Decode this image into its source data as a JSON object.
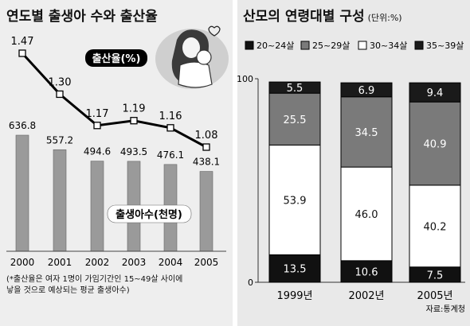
{
  "left": {
    "title": "연도별 출생아 수와 출산율",
    "footnote": "(*출산율은 여자 1명이 가임기간인 15~49살 사이에\n낳을 것으로 예상되는 평균 출생아수)"
  },
  "right": {
    "title": "산모의 연령대별 구성",
    "unit": "(단위:%)",
    "source": "자료:통계청"
  },
  "chart_data": [
    {
      "type": "bar",
      "categories": [
        "2000",
        "2001",
        "2002",
        "2003",
        "2004",
        "2005"
      ],
      "series": [
        {
          "name": "출생아수(천명)",
          "values": [
            636.8,
            557.2,
            494.6,
            493.5,
            476.1,
            438.1
          ]
        }
      ],
      "ylim": [
        0,
        700
      ],
      "bar_color": "#9a9a9a"
    },
    {
      "type": "line",
      "categories": [
        "2000",
        "2001",
        "2002",
        "2003",
        "2004",
        "2005"
      ],
      "series": [
        {
          "name": "출산율(%)",
          "values": [
            1.47,
            1.3,
            1.17,
            1.19,
            1.16,
            1.08
          ]
        }
      ],
      "ylim": [
        0.9,
        1.55
      ],
      "line_color": "#000000"
    },
    {
      "type": "bar",
      "stacked": true,
      "categories": [
        "1999년",
        "2002년",
        "2005년"
      ],
      "series": [
        {
          "name": "20~24살",
          "values": [
            13.5,
            10.6,
            7.5
          ],
          "color": "#111111"
        },
        {
          "name": "30~34살",
          "values": [
            53.9,
            46.0,
            40.2
          ],
          "color": "#ffffff"
        },
        {
          "name": "25~29살",
          "values": [
            25.5,
            34.5,
            40.9
          ],
          "color": "#7a7a7a"
        },
        {
          "name": "35~39살",
          "values": [
            5.5,
            6.9,
            9.4
          ],
          "color": "#1a1a1a"
        }
      ],
      "legend_order": [
        "20~24살",
        "25~29살",
        "30~34살",
        "35~39살"
      ],
      "yticks": [
        0,
        100
      ],
      "ylim": [
        0,
        100
      ]
    }
  ]
}
